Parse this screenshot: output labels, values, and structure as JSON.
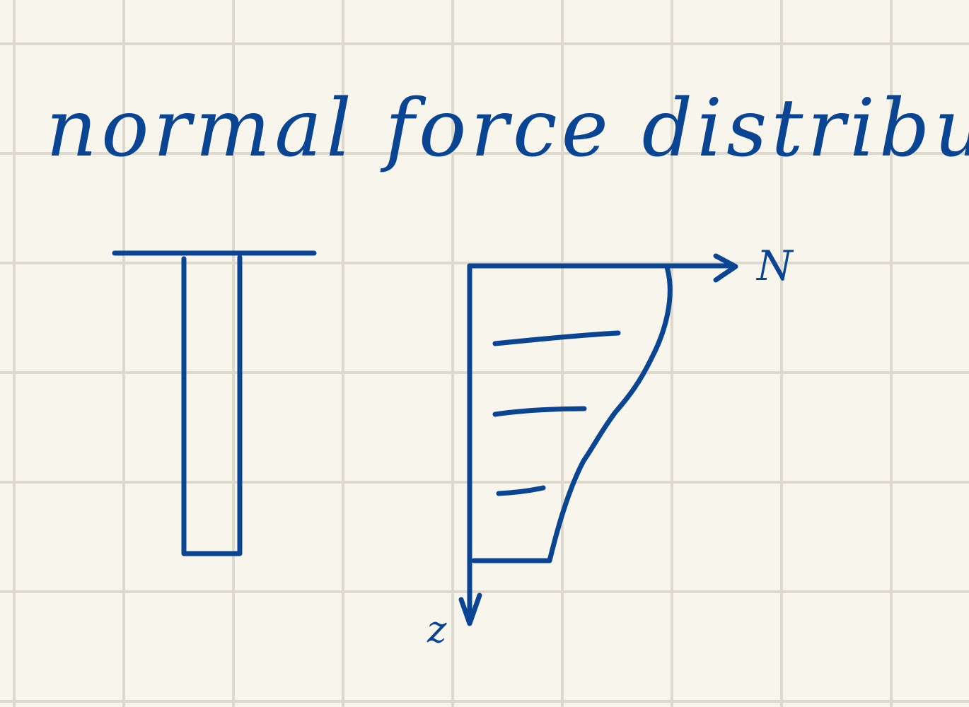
{
  "title": "normal force distribution",
  "axis_labels": {
    "horizontal": "N",
    "vertical": "z"
  },
  "colors": {
    "ink": "#0a4594",
    "paper": "#f8f6ec",
    "grid": "#ddd9cc"
  }
}
